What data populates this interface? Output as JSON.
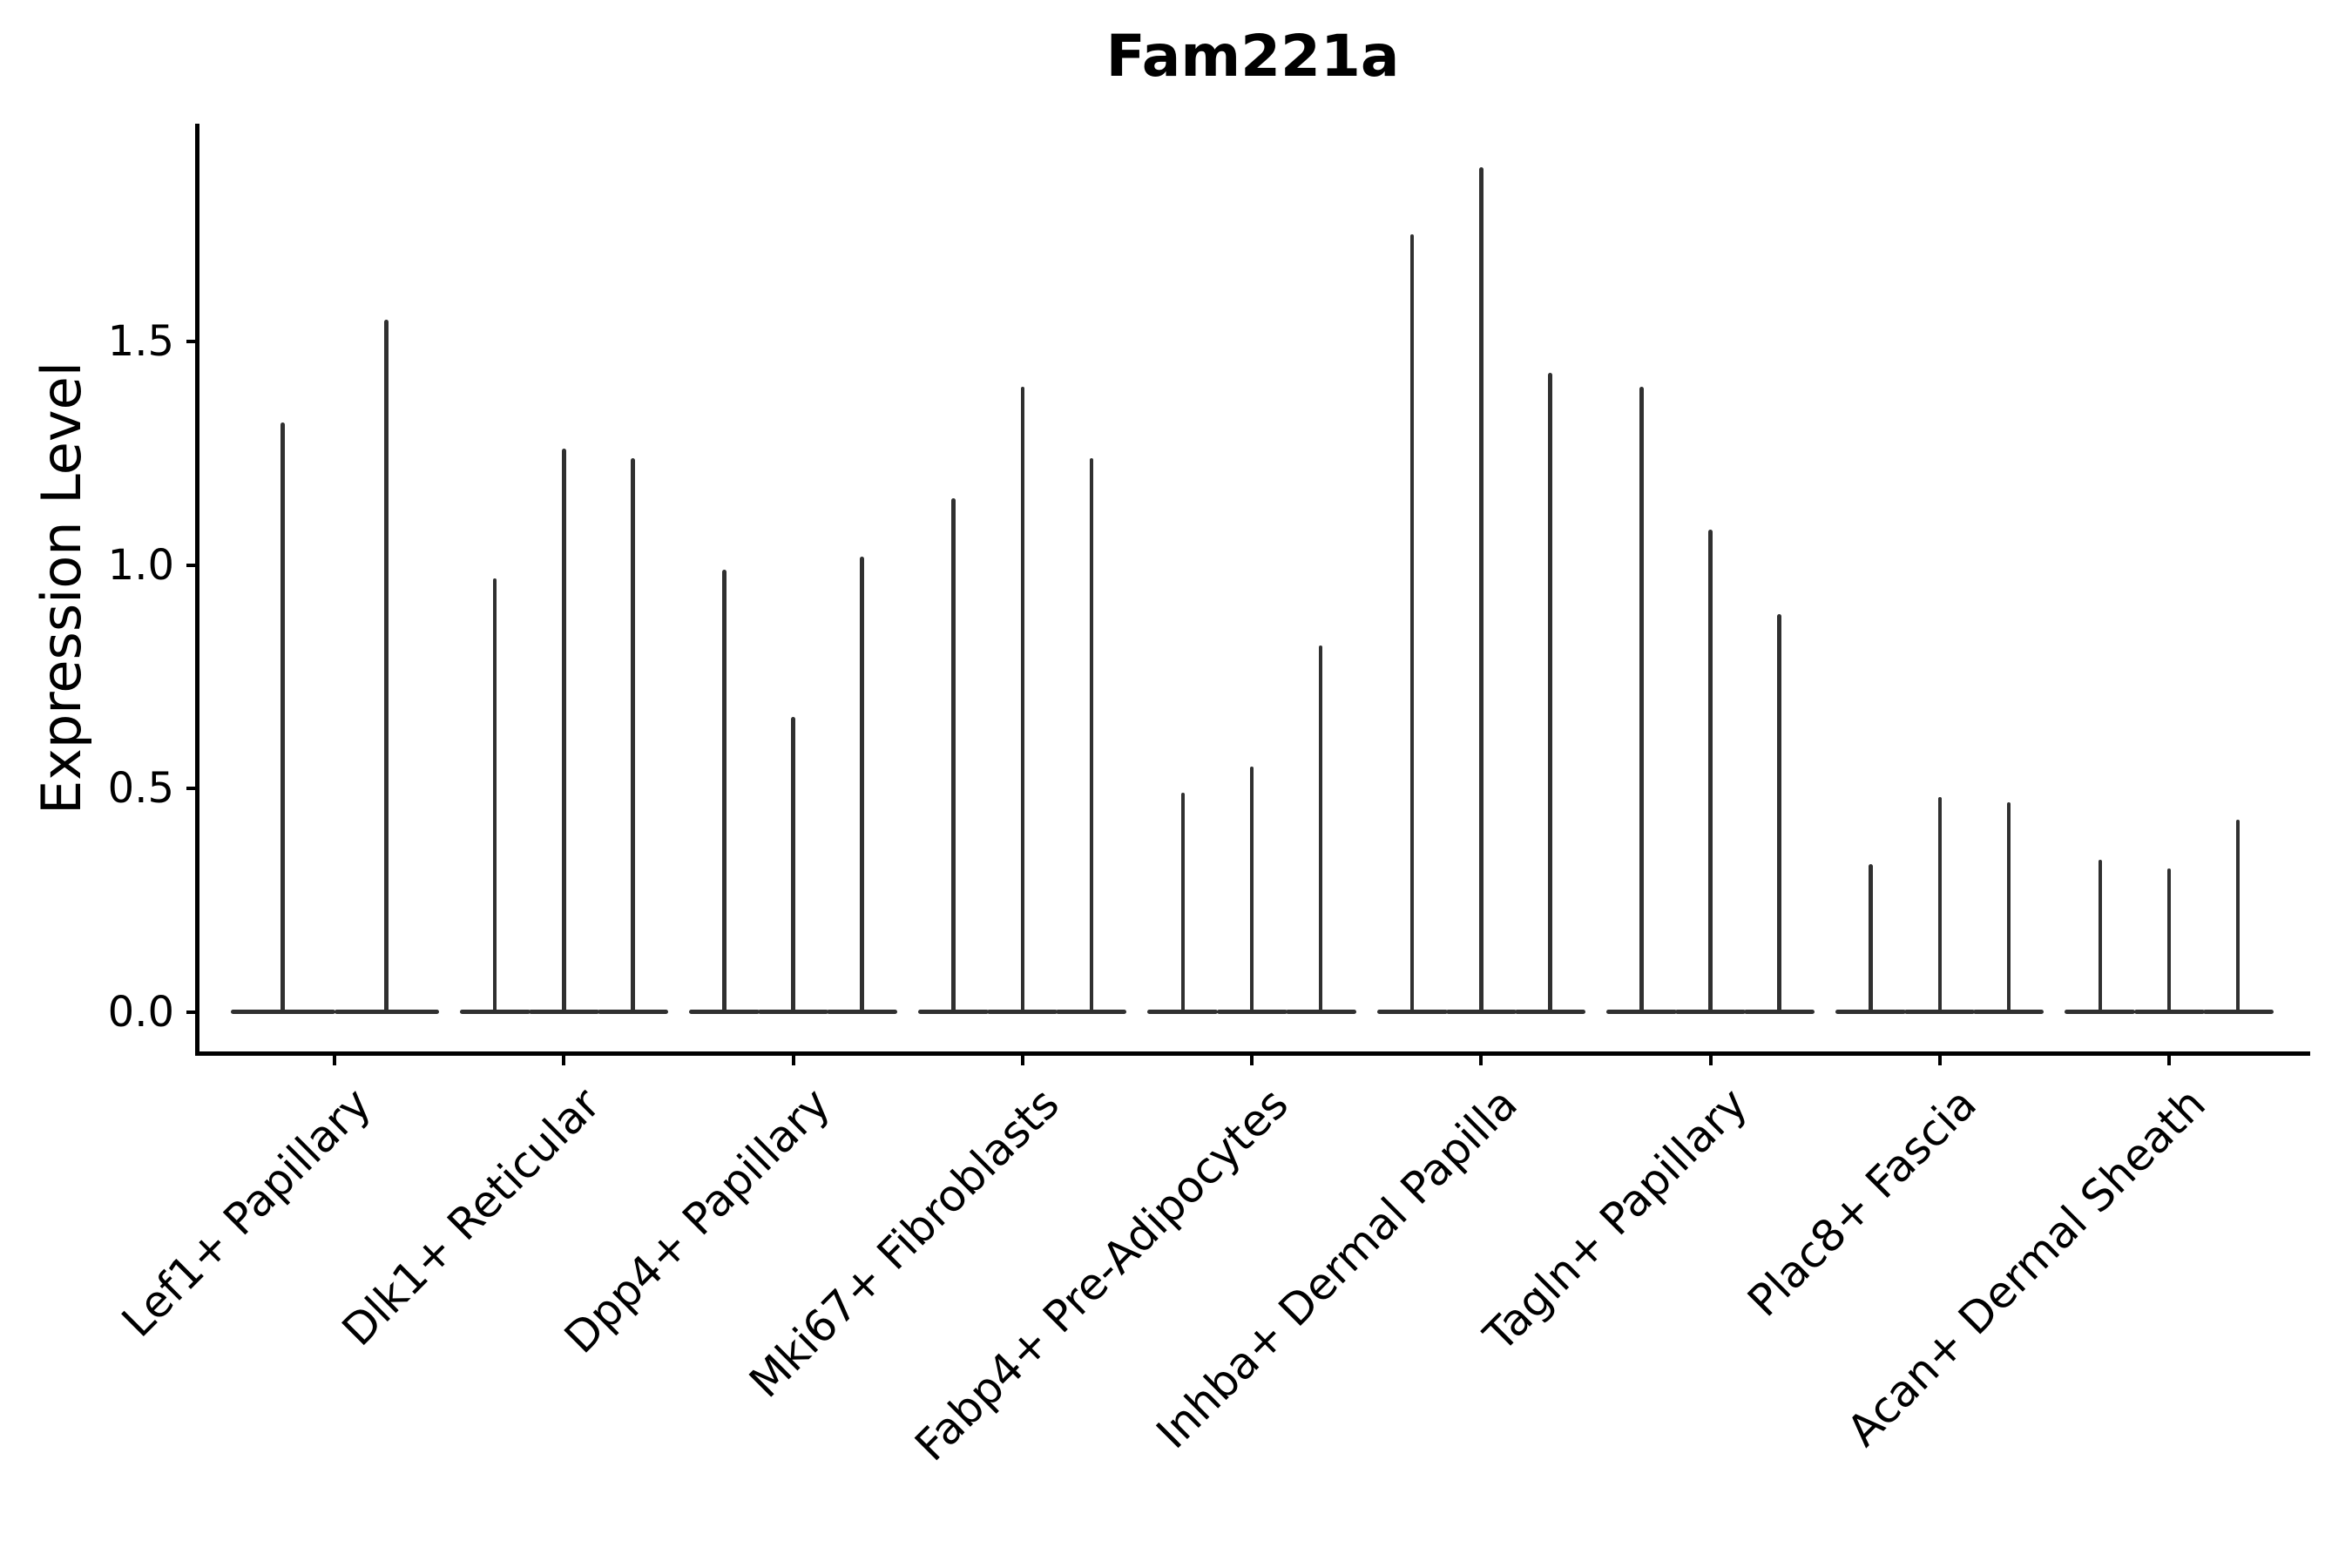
{
  "chart_data": {
    "type": "violin",
    "title": "Fam221a",
    "ylabel": "Expression Level",
    "xlabel": "",
    "grid": false,
    "legend": "none",
    "ylim": [
      -0.09,
      1.99
    ],
    "ytick_values": [
      0.0,
      0.5,
      1.0,
      1.5
    ],
    "ytick_labels": [
      "0.0",
      "0.5",
      "1.0",
      "1.5"
    ],
    "violin_color": "#303030",
    "axis_color": "#000000",
    "style_note": "Each violin is an extremely narrow spike rising from a flat base at expression 0 up to its maximum value; bases of violins within a group merge into one horizontal segment at y=0.",
    "categories": [
      "Lef1+ Papillary",
      "Dlk1+ Reticular",
      "Dpp4+ Papillary",
      "Mki67+ Fibroblasts",
      "Fabp4+ Pre-Adipocytes",
      "Inhba+ Dermal Papilla",
      "Tagln+ Papillary",
      "Plac8+ Fascia",
      "Acan+ Dermal Sheath"
    ],
    "series": [
      {
        "category": "Lef1+ Papillary",
        "violin_maxima": [
          1.32,
          1.55
        ]
      },
      {
        "category": "Dlk1+ Reticular",
        "violin_maxima": [
          0.97,
          1.26,
          1.24
        ]
      },
      {
        "category": "Dpp4+ Papillary",
        "violin_maxima": [
          0.99,
          0.66,
          1.02
        ]
      },
      {
        "category": "Mki67+ Fibroblasts",
        "violin_maxima": [
          1.15,
          1.4,
          1.24
        ]
      },
      {
        "category": "Fabp4+ Pre-Adipocytes",
        "violin_maxima": [
          0.49,
          0.55,
          0.82
        ]
      },
      {
        "category": "Inhba+ Dermal Papilla",
        "violin_maxima": [
          1.74,
          1.89,
          1.43
        ]
      },
      {
        "category": "Tagln+ Papillary",
        "violin_maxima": [
          1.4,
          1.08,
          0.89
        ]
      },
      {
        "category": "Plac8+ Fascia",
        "violin_maxima": [
          0.33,
          0.48,
          0.47
        ]
      },
      {
        "category": "Acan+ Dermal Sheath",
        "violin_maxima": [
          0.34,
          0.32,
          0.43
        ]
      }
    ]
  }
}
